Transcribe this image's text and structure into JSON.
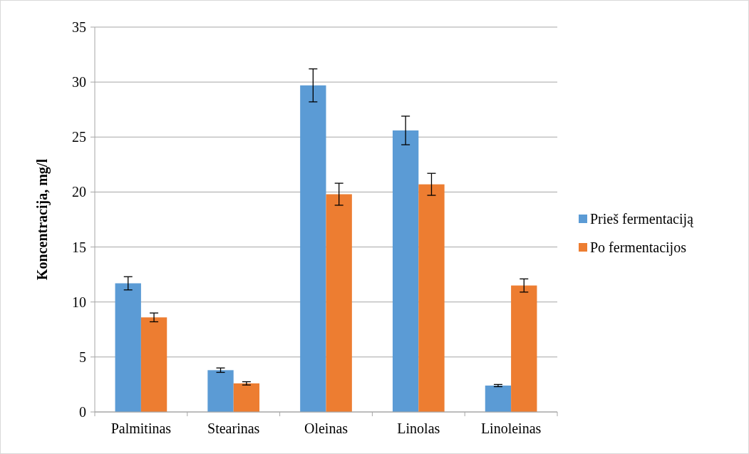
{
  "chart_data": {
    "type": "bar",
    "ylabel": "Koncentracija, mg/l",
    "categories": [
      "Palmitinas",
      "Stearinas",
      "Oleinas",
      "Linolas",
      "Linoleinas"
    ],
    "series": [
      {
        "name": "Prieš fermentaciją",
        "color": "#5b9bd5",
        "values": [
          11.7,
          3.8,
          29.7,
          25.6,
          2.4
        ],
        "errors": [
          0.6,
          0.2,
          1.5,
          1.3,
          0.1
        ]
      },
      {
        "name": "Po fermentacijos",
        "color": "#ed7d31",
        "values": [
          8.6,
          2.6,
          19.8,
          20.7,
          11.5
        ],
        "errors": [
          0.4,
          0.15,
          1.0,
          1.0,
          0.6
        ]
      }
    ],
    "ylim": [
      0,
      35
    ],
    "yticks": [
      0,
      5,
      10,
      15,
      20,
      25,
      30,
      35
    ],
    "grid": "y",
    "legend": "right"
  }
}
